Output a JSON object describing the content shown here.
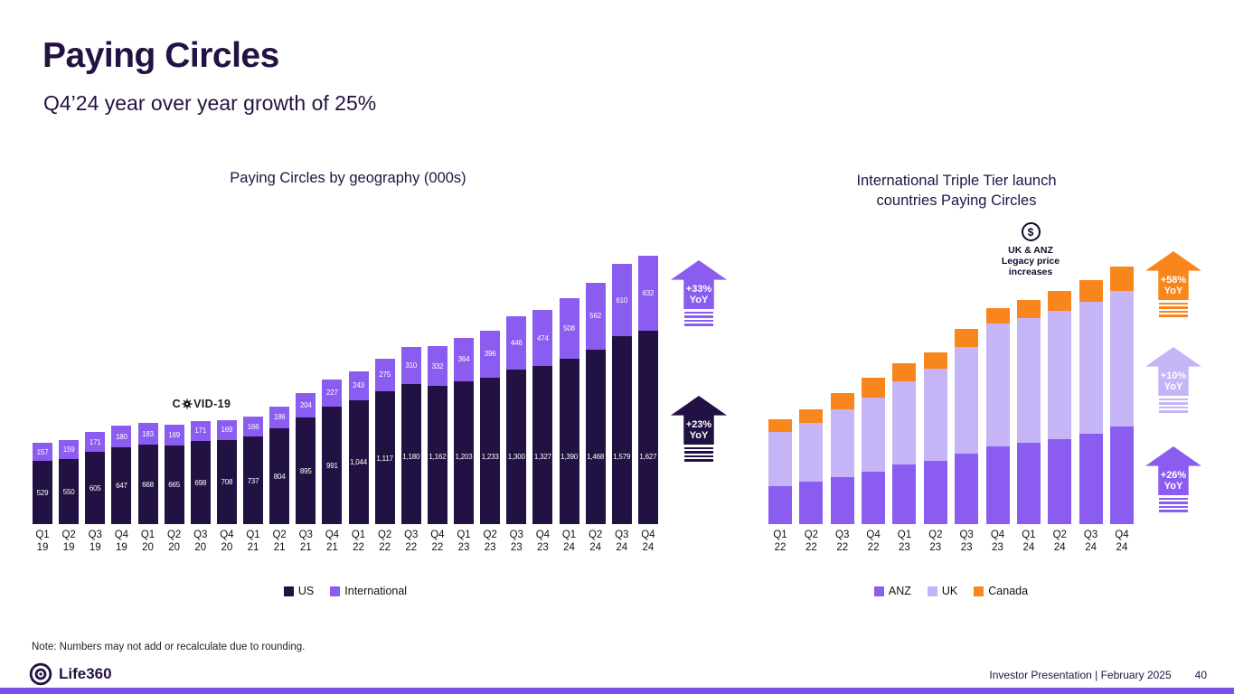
{
  "slide": {
    "title": "Paying Circles",
    "subtitle": "Q4’24 year over year growth of 25%",
    "note": "Note: Numbers may not add or recalculate due to rounding.",
    "footer": {
      "brand": "Life360",
      "text": "Investor Presentation | February 2025",
      "page": "40"
    }
  },
  "chart_data": [
    {
      "type": "bar",
      "stacked": true,
      "title": "Paying Circles by geography (000s)",
      "units": "thousands of Paying Circles",
      "categories": [
        "Q1 19",
        "Q2 19",
        "Q3 19",
        "Q4 19",
        "Q1 20",
        "Q2 20",
        "Q3 20",
        "Q4 20",
        "Q1 21",
        "Q2 21",
        "Q3 21",
        "Q4 21",
        "Q1 22",
        "Q2 22",
        "Q3 22",
        "Q4 22",
        "Q1 23",
        "Q2 23",
        "Q3 23",
        "Q4 23",
        "Q1 24",
        "Q2 24",
        "Q3 24",
        "Q4 24"
      ],
      "series": [
        {
          "name": "US",
          "color": "#221143",
          "values": [
            529,
            550,
            605,
            647,
            668,
            665,
            698,
            708,
            737,
            804,
            895,
            991,
            1044,
            1117,
            1180,
            1162,
            1203,
            1233,
            1300,
            1327,
            1390,
            1468,
            1579,
            1627
          ]
        },
        {
          "name": "International",
          "color": "#8A5CF0",
          "values": [
            157,
            159,
            171,
            180,
            183,
            169,
            171,
            169,
            166,
            186,
            204,
            227,
            243,
            275,
            310,
            332,
            364,
            396,
            446,
            474,
            508,
            562,
            610,
            632
          ]
        }
      ],
      "value_labels": "white labels on each bar segment",
      "legend_position": "bottom",
      "grid": false,
      "annotations": [
        {
          "prefix": "C",
          "suffix": "VID-19",
          "text": "COVID-19",
          "near_category": "Q3 20",
          "icon": "virus-icon"
        }
      ],
      "arrows": [
        {
          "label": "+33% YoY",
          "series": "International",
          "color": "#8A5CF0"
        },
        {
          "label": "+23% YoY",
          "series": "US",
          "color": "#221143"
        }
      ]
    },
    {
      "type": "bar",
      "stacked": true,
      "title": "International Triple Tier launch\ncountries Paying Circles",
      "values_estimated": true,
      "values_note": "No axis or data labels shown; values estimated from relative bar heights",
      "categories": [
        "Q1 22",
        "Q2 22",
        "Q3 22",
        "Q4 22",
        "Q1 23",
        "Q2 23",
        "Q3 23",
        "Q4 23",
        "Q1 24",
        "Q2 24",
        "Q3 24",
        "Q4 24"
      ],
      "series": [
        {
          "name": "ANZ",
          "color": "#8A5CF0",
          "values": [
            42,
            47,
            52,
            58,
            66,
            70,
            78,
            86,
            90,
            94,
            100,
            108
          ]
        },
        {
          "name": "UK",
          "color": "#C6B5F6",
          "values": [
            60,
            65,
            75,
            82,
            92,
            102,
            118,
            136,
            138,
            142,
            146,
            150
          ]
        },
        {
          "name": "Canada",
          "color": "#F8861D",
          "values": [
            14,
            15,
            18,
            22,
            20,
            18,
            20,
            17,
            20,
            22,
            24,
            27
          ]
        }
      ],
      "legend_position": "bottom",
      "grid": false,
      "annotations": [
        {
          "symbol": "$",
          "icon": "dollar-coin-icon",
          "text": "UK & ANZ Legacy price increases"
        }
      ],
      "arrows": [
        {
          "label": "+58% YoY",
          "series": "Canada",
          "color": "#F8861D"
        },
        {
          "label": "+10% YoY",
          "series": "UK",
          "color": "#C6B5F6"
        },
        {
          "label": "+26% YoY",
          "series": "ANZ",
          "color": "#8A5CF0"
        }
      ]
    }
  ]
}
